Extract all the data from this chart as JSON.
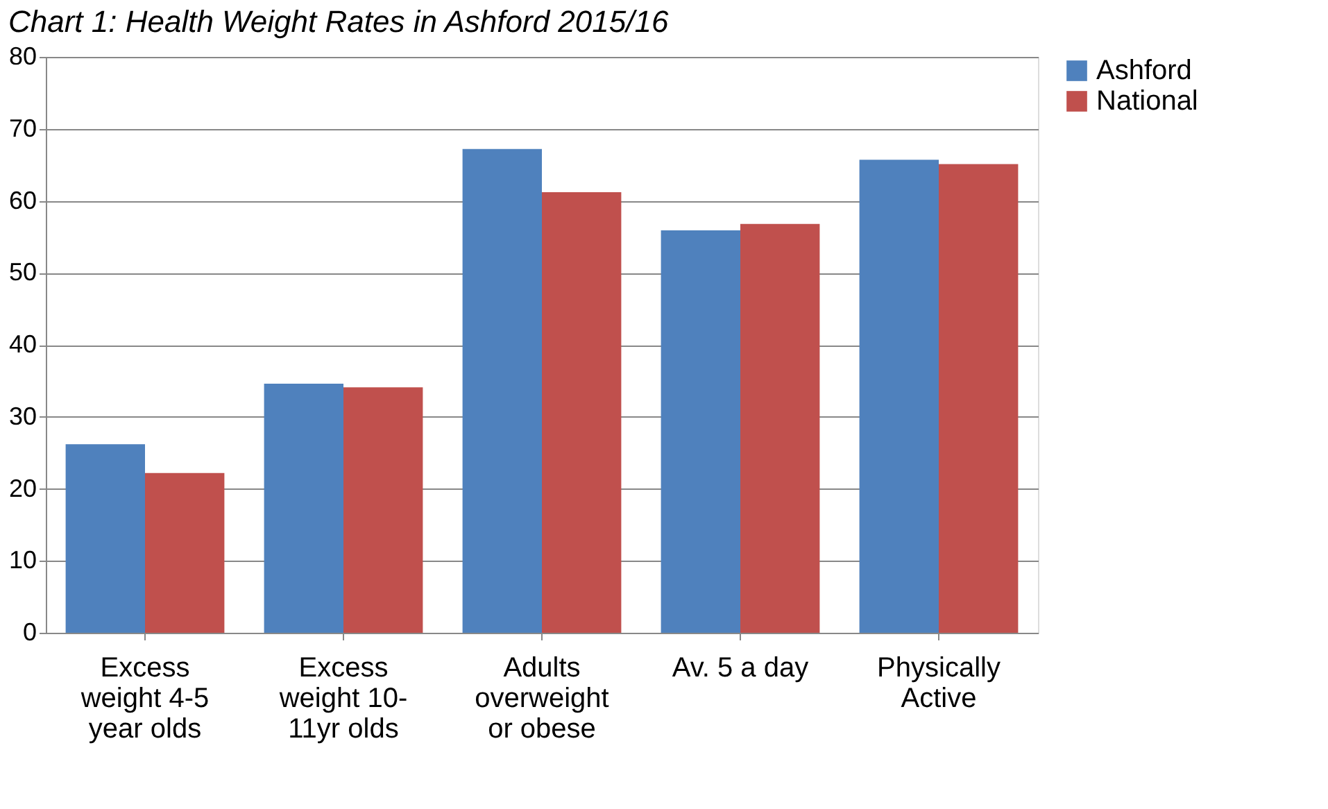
{
  "chart_data": {
    "type": "bar",
    "title": "Chart 1: Health Weight Rates in Ashford 2015/16",
    "categories": [
      "Excess weight 4-5 year olds",
      "Excess weight 10-11yr olds",
      "Adults overweight or obese",
      "Av. 5 a day",
      "Physically Active"
    ],
    "series": [
      {
        "name": "Ashford",
        "color": "#4f81bd",
        "values": [
          26.2,
          34.6,
          67.2,
          55.9,
          65.7
        ]
      },
      {
        "name": "National",
        "color": "#c0504d",
        "values": [
          22.2,
          34.1,
          61.2,
          56.8,
          65.1
        ]
      }
    ],
    "ylim": [
      0,
      80
    ],
    "yticks": [
      0,
      10,
      20,
      30,
      40,
      50,
      60,
      70,
      80
    ],
    "grid": "y",
    "legend": "right"
  }
}
